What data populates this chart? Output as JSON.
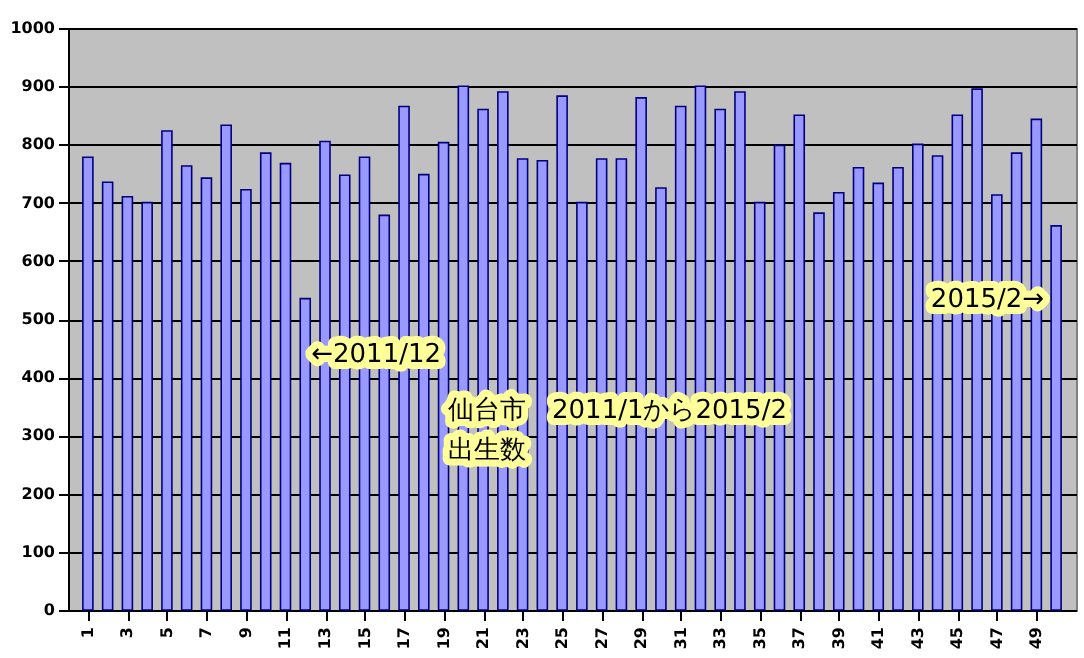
{
  "chart_data": {
    "type": "bar",
    "title": "仙台市　2011/1から2015/2",
    "subtitle": "出生数",
    "x": [
      1,
      2,
      3,
      4,
      5,
      6,
      7,
      8,
      9,
      10,
      11,
      12,
      13,
      14,
      15,
      16,
      17,
      18,
      19,
      20,
      21,
      22,
      23,
      24,
      25,
      26,
      27,
      28,
      29,
      30,
      31,
      32,
      33,
      34,
      35,
      36,
      37,
      38,
      39,
      40,
      41,
      42,
      43,
      44,
      45,
      46,
      47,
      48,
      49,
      50
    ],
    "values": [
      778,
      735,
      710,
      700,
      823,
      763,
      742,
      833,
      722,
      785,
      767,
      535,
      805,
      747,
      778,
      678,
      865,
      748,
      803,
      900,
      860,
      890,
      775,
      772,
      883,
      700,
      775,
      775,
      880,
      725,
      865,
      900,
      860,
      890,
      700,
      798,
      850,
      682,
      717,
      760,
      733,
      760,
      800,
      780,
      850,
      895,
      713,
      785,
      843,
      660
    ],
    "color": "#9999ff",
    "xlim": [
      0.5,
      50.5
    ],
    "xticks": [
      1,
      3,
      5,
      7,
      9,
      11,
      13,
      15,
      17,
      19,
      21,
      23,
      25,
      27,
      29,
      31,
      33,
      35,
      37,
      39,
      41,
      43,
      45,
      47,
      49
    ],
    "ylim": [
      0,
      1000
    ],
    "yticks": [
      0,
      100,
      200,
      300,
      400,
      500,
      600,
      700,
      800,
      900,
      1000
    ],
    "grid": "y",
    "annotations": [
      {
        "text": "←2011/12",
        "x": 12,
        "y": 440
      },
      {
        "text": "2015/2→",
        "x": 50,
        "y": 535
      }
    ]
  }
}
